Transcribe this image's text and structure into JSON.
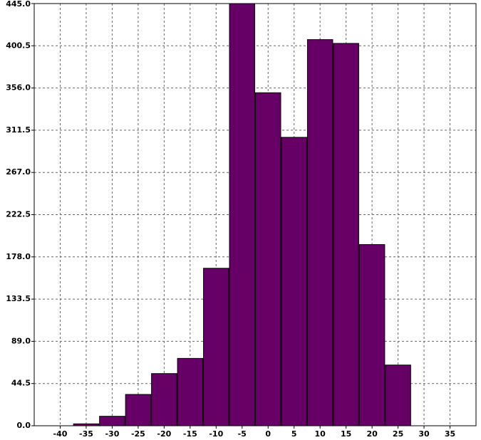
{
  "chart_data": {
    "type": "histogram",
    "bins": [
      -37.5,
      -32.5,
      -27.5,
      -22.5,
      -17.5,
      -12.5,
      -7.5,
      -2.5,
      2.5,
      7.5,
      12.5,
      17.5,
      22.5,
      27.5
    ],
    "counts": [
      2,
      10,
      33,
      55,
      71,
      166,
      445,
      351,
      304,
      407,
      403,
      191,
      64
    ],
    "color": "#660066",
    "xlim": [
      -45,
      40
    ],
    "xticks": [
      -40,
      -35,
      -30,
      -25,
      -20,
      -15,
      -10,
      -5,
      0,
      5,
      10,
      15,
      20,
      25,
      30,
      35
    ],
    "ylim": [
      0,
      445
    ],
    "yticks": [
      {
        "value": 0,
        "label": "0.0"
      },
      44.5,
      {
        "value": 89,
        "label": "89.0"
      },
      133.5,
      {
        "value": 178,
        "label": "178.0"
      },
      222.5,
      {
        "value": 267,
        "label": "267.0"
      },
      311.5,
      {
        "value": 356,
        "label": "356.0"
      },
      400.5,
      {
        "value": 445,
        "label": "445.0"
      }
    ],
    "grid": true
  }
}
